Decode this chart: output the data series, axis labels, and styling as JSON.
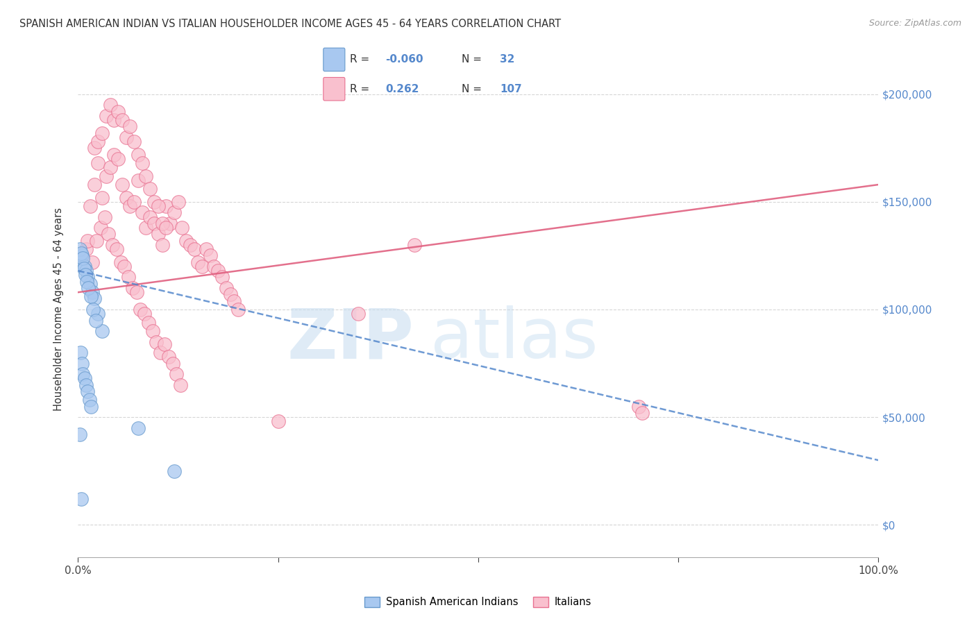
{
  "title": "SPANISH AMERICAN INDIAN VS ITALIAN HOUSEHOLDER INCOME AGES 45 - 64 YEARS CORRELATION CHART",
  "source": "Source: ZipAtlas.com",
  "ylabel": "Householder Income Ages 45 - 64 years",
  "legend_labels": [
    "Spanish American Indians",
    "Italians"
  ],
  "color_blue_fill": "#A8C8F0",
  "color_blue_edge": "#6699CC",
  "color_blue_line": "#5588CC",
  "color_pink_fill": "#F9C0CE",
  "color_pink_edge": "#E87090",
  "color_pink_line": "#E06080",
  "color_right_axis": "#5588CC",
  "ytick_labels": [
    "$0",
    "$50,000",
    "$100,000",
    "$150,000",
    "$200,000"
  ],
  "ytick_values": [
    0,
    50000,
    100000,
    150000,
    200000
  ],
  "ymin": -15000,
  "ymax": 215000,
  "xmin": 0,
  "xmax": 100,
  "blue_scatter_x": [
    0.3,
    0.5,
    0.8,
    1.0,
    1.2,
    1.5,
    1.8,
    2.0,
    2.5,
    3.0,
    0.2,
    0.4,
    0.6,
    0.7,
    0.9,
    1.1,
    1.3,
    1.6,
    1.9,
    2.2,
    0.3,
    0.5,
    0.6,
    0.8,
    1.0,
    1.2,
    1.4,
    1.6,
    7.5,
    12.0,
    0.2,
    0.4
  ],
  "blue_scatter_y": [
    122000,
    125000,
    120000,
    118000,
    115000,
    112000,
    108000,
    105000,
    98000,
    90000,
    128000,
    126000,
    124000,
    119000,
    116000,
    113000,
    110000,
    106000,
    100000,
    95000,
    80000,
    75000,
    70000,
    68000,
    65000,
    62000,
    58000,
    55000,
    45000,
    25000,
    42000,
    12000
  ],
  "pink_scatter_x": [
    1.0,
    1.5,
    2.0,
    2.5,
    3.0,
    3.5,
    4.0,
    4.5,
    5.0,
    5.5,
    6.0,
    6.5,
    7.0,
    7.5,
    8.0,
    8.5,
    9.0,
    9.5,
    10.0,
    10.5,
    11.0,
    11.5,
    12.0,
    12.5,
    13.0,
    13.5,
    14.0,
    14.5,
    15.0,
    15.5,
    16.0,
    16.5,
    17.0,
    17.5,
    18.0,
    18.5,
    19.0,
    19.5,
    20.0,
    1.2,
    1.8,
    2.3,
    2.8,
    3.3,
    3.8,
    4.3,
    4.8,
    5.3,
    5.8,
    6.3,
    6.8,
    7.3,
    7.8,
    8.3,
    8.8,
    9.3,
    9.8,
    10.3,
    10.8,
    11.3,
    11.8,
    12.3,
    12.8,
    2.0,
    2.5,
    3.0,
    3.5,
    4.0,
    4.5,
    5.0,
    5.5,
    6.0,
    6.5,
    7.0,
    7.5,
    8.0,
    8.5,
    9.0,
    9.5,
    10.0,
    10.5,
    11.0,
    25.0,
    70.0,
    70.5,
    35.0,
    42.0
  ],
  "pink_scatter_y": [
    128000,
    148000,
    158000,
    168000,
    152000,
    162000,
    166000,
    172000,
    170000,
    158000,
    152000,
    148000,
    150000,
    160000,
    145000,
    138000,
    143000,
    140000,
    135000,
    130000,
    148000,
    140000,
    145000,
    150000,
    138000,
    132000,
    130000,
    128000,
    122000,
    120000,
    128000,
    125000,
    120000,
    118000,
    115000,
    110000,
    107000,
    104000,
    100000,
    132000,
    122000,
    132000,
    138000,
    143000,
    135000,
    130000,
    128000,
    122000,
    120000,
    115000,
    110000,
    108000,
    100000,
    98000,
    94000,
    90000,
    85000,
    80000,
    84000,
    78000,
    75000,
    70000,
    65000,
    175000,
    178000,
    182000,
    190000,
    195000,
    188000,
    192000,
    188000,
    180000,
    185000,
    178000,
    172000,
    168000,
    162000,
    156000,
    150000,
    148000,
    140000,
    138000,
    48000,
    55000,
    52000,
    98000,
    130000
  ]
}
